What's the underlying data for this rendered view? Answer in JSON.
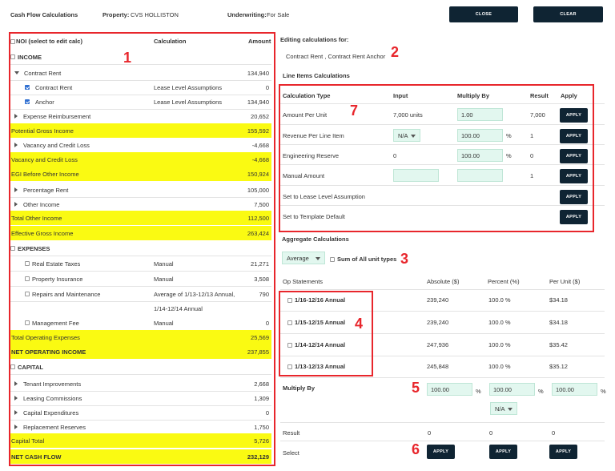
{
  "header": {
    "title": "Cash Flow Calculations",
    "property_label": "Property:",
    "property_value": "CVS HOLLISTON",
    "underwriting_label": "Underwriting:",
    "underwriting_value": "For Sale",
    "close_label": "CLOSE",
    "clear_label": "CLEAR"
  },
  "tree": {
    "col_noi": "NOI (select to edit calc)",
    "col_calc": "Calculation",
    "col_amount": "Amount",
    "rows": [
      {
        "name": "INCOME",
        "calc": "",
        "amount": ""
      },
      {
        "name": "Contract Rent",
        "calc": "",
        "amount": "134,940"
      },
      {
        "name": "Contract Rent",
        "calc": "Lease Level Assumptions",
        "amount": "0"
      },
      {
        "name": "Anchor",
        "calc": "Lease Level Assumptions",
        "amount": "134,940"
      },
      {
        "name": "Expense Reimbursement",
        "calc": "",
        "amount": "20,652"
      },
      {
        "name": "Potential Gross Income",
        "calc": "",
        "amount": "155,592"
      },
      {
        "name": "Vacancy and Credit Loss",
        "calc": "",
        "amount": "-4,668"
      },
      {
        "name": "Vacancy and Credit Loss",
        "calc": "",
        "amount": "-4,668"
      },
      {
        "name": "EGI Before Other Income",
        "calc": "",
        "amount": "150,924"
      },
      {
        "name": "Percentage Rent",
        "calc": "",
        "amount": "105,000"
      },
      {
        "name": "Other Income",
        "calc": "",
        "amount": "7,500"
      },
      {
        "name": "Total Other Income",
        "calc": "",
        "amount": "112,500"
      },
      {
        "name": "Effective Gross Income",
        "calc": "",
        "amount": "263,424"
      },
      {
        "name": "EXPENSES",
        "calc": "",
        "amount": ""
      },
      {
        "name": "Real Estate Taxes",
        "calc": "Manual",
        "amount": "21,271"
      },
      {
        "name": "Property Insurance",
        "calc": "Manual",
        "amount": "3,508"
      },
      {
        "name": "Repairs and Maintenance",
        "calc": "Average of 1/13-12/13 Annual,",
        "calc2": "1/14-12/14 Annual",
        "amount": "790"
      },
      {
        "name": "Management Fee",
        "calc": "Manual",
        "amount": "0"
      },
      {
        "name": "Total Operating Expenses",
        "calc": "",
        "amount": "25,569"
      },
      {
        "name": "NET OPERATING INCOME",
        "calc": "",
        "amount": "237,855"
      },
      {
        "name": "CAPITAL",
        "calc": "",
        "amount": ""
      },
      {
        "name": "Tenant Improvements",
        "calc": "",
        "amount": "2,668"
      },
      {
        "name": "Leasing Commissions",
        "calc": "",
        "amount": "1,309"
      },
      {
        "name": "Capital Expenditures",
        "calc": "",
        "amount": "0"
      },
      {
        "name": "Replacement Reserves",
        "calc": "",
        "amount": "1,750"
      },
      {
        "name": "Capital Total",
        "calc": "",
        "amount": "5,726"
      },
      {
        "name": "NET CASH FLOW",
        "calc": "",
        "amount": "232,129"
      }
    ]
  },
  "editing": {
    "label": "Editing calculations for:",
    "value": "Contract Rent , Contract Rent Anchor"
  },
  "line_items": {
    "title": "Line Items Calculations",
    "col_type": "Calculation Type",
    "col_input": "Input",
    "col_multiply": "Multiply By",
    "col_result": "Result",
    "col_apply": "Apply",
    "apply_label": "APPLY",
    "rows": [
      {
        "type": "Amount Per Unit",
        "input": "7,000 units",
        "multiply": "1.00",
        "pct": "",
        "result": "7,000"
      },
      {
        "type": "Revenue Per Line Item",
        "input": "N/A",
        "multiply": "100.00",
        "pct": "%",
        "result": "1"
      },
      {
        "type": "Engineering Reserve",
        "input": "0",
        "multiply": "100.00",
        "pct": "%",
        "result": "0"
      },
      {
        "type": "Manual Amount",
        "input": "",
        "multiply": "",
        "pct": "",
        "result": "1"
      },
      {
        "type": "Set to Lease Level Assumption",
        "input": "",
        "multiply": "",
        "pct": "",
        "result": ""
      },
      {
        "type": "Set to Template Default",
        "input": "",
        "multiply": "",
        "pct": "",
        "result": ""
      }
    ]
  },
  "aggregate": {
    "title": "Aggregate Calculations",
    "method": "Average",
    "sum_label": "Sum of All unit types",
    "col_op": "Op Statements",
    "col_abs": "Absolute ($)",
    "col_pct": "Percent (%)",
    "col_unit": "Per Unit ($)",
    "rows": [
      {
        "name": "1/16-12/16 Annual",
        "abs": "239,240",
        "pct": "100.0 %",
        "unit": "$34.18"
      },
      {
        "name": "1/15-12/15 Annual",
        "abs": "239,240",
        "pct": "100.0 %",
        "unit": "$34.18"
      },
      {
        "name": "1/14-12/14 Annual",
        "abs": "247,936",
        "pct": "100.0 %",
        "unit": "$35.42"
      },
      {
        "name": "1/13-12/13 Annual",
        "abs": "245,848",
        "pct": "100.0 %",
        "unit": "$35.12"
      }
    ],
    "multiply_label": "Multiply By",
    "multiply_values": [
      "100.00",
      "100.00",
      "100.00"
    ],
    "pct_sign": "%",
    "na": "N/A",
    "result_label": "Result",
    "results": [
      "0",
      "0",
      "0"
    ],
    "select_label": "Select",
    "apply_label": "APPLY"
  },
  "annotations": [
    "1",
    "2",
    "3",
    "4",
    "5",
    "6",
    "7"
  ],
  "colors": {
    "highlight": "#fafa12",
    "annotation": "#e8262c",
    "button": "#0f2433",
    "input_bg": "#e2f7ef"
  }
}
